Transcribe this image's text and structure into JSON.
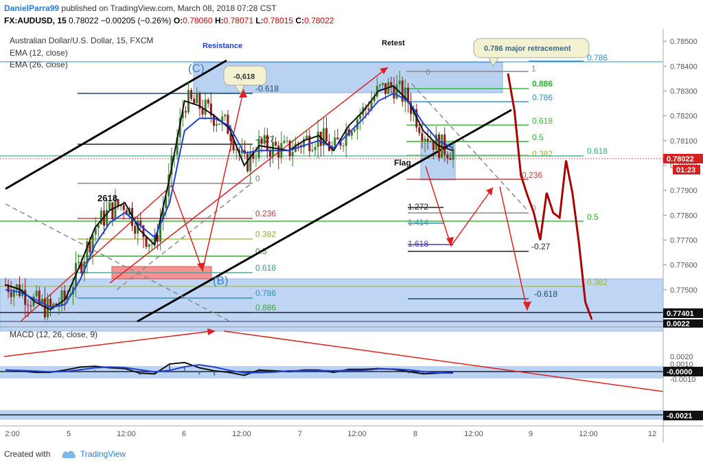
{
  "header": {
    "author": "DanielParra99",
    "published_text": "published on TradingView.com, March 08, 2018 07:28 CST",
    "symbol_line": "FX:AUDUSD, 15",
    "price": "0.78022",
    "change": "−0.00205 (−0.26%)",
    "open_label": "O:",
    "open": "0.78060",
    "high_label": "H:",
    "high": "0.78071",
    "low_label": "L:",
    "low": "0.78015",
    "close_label": "C:",
    "close": "0.78022"
  },
  "legend": {
    "title": "Australian Dollar/U.S. Dollar, 15, FXCM",
    "ema1": "EMA (12, close)",
    "ema2": "EMA (26, close)",
    "macd": "MACD (12, 26, close, 9)"
  },
  "colors": {
    "candle_up": "#3a7d2c",
    "candle_down": "#8b1a1a",
    "ema12": "#111111",
    "ema26": "#1f3fd6",
    "zone_blue": "#a9c8f0",
    "zone_red": "#f08080",
    "forecast": "#aa0000",
    "last_price_tag": "#d62020"
  },
  "chart_data": {
    "type": "line",
    "title": "Australian Dollar/U.S. Dollar, 15, FXCM",
    "y_price_range": [
      0.7735,
      0.7855
    ],
    "y_ticks": [
      "0.78500",
      "0.78400",
      "0.78300",
      "0.78200",
      "0.78100",
      "0.78000",
      "0.77900",
      "0.77800",
      "0.77700",
      "0.77600",
      "0.77500"
    ],
    "price_tags": {
      "last": "0.78022",
      "time": "01:23",
      "low_line": "0.77401",
      "zone_bottom": "0.0022"
    },
    "x_ticks": [
      "2:00",
      "5",
      "12:00",
      "6",
      "12:00",
      "7",
      "12:00",
      "8",
      "12:00",
      "9",
      "12:00",
      "12"
    ],
    "macd": {
      "y_ticks": [
        "0.0020",
        "0.0010",
        "-0.0010"
      ],
      "tags": [
        "-0.0000",
        "-0.0021"
      ]
    },
    "series": [
      {
        "name": "EMA (12, close)",
        "values": [
          0.7752,
          0.775,
          0.7745,
          0.7742,
          0.7746,
          0.776,
          0.7775,
          0.7782,
          0.7785,
          0.7774,
          0.7768,
          0.7795,
          0.7826,
          0.7824,
          0.782,
          0.7815,
          0.78,
          0.7808,
          0.7807,
          0.7806,
          0.781,
          0.7812,
          0.7806,
          0.7816,
          0.7822,
          0.783,
          0.7832,
          0.7826,
          0.7814,
          0.7808,
          0.7806
        ]
      },
      {
        "name": "EMA (26, close)",
        "values": [
          0.775,
          0.7749,
          0.7746,
          0.7743,
          0.7744,
          0.7754,
          0.7768,
          0.7777,
          0.7781,
          0.7776,
          0.7771,
          0.7785,
          0.7814,
          0.7819,
          0.7819,
          0.7816,
          0.7805,
          0.7806,
          0.7806,
          0.7806,
          0.7808,
          0.781,
          0.7807,
          0.7813,
          0.7819,
          0.7826,
          0.7829,
          0.7826,
          0.7817,
          0.781,
          0.7807
        ]
      }
    ],
    "forecast_path": [
      0.7837,
      0.7822,
      0.7796,
      0.7788,
      0.7781,
      0.777,
      0.7789,
      0.7781,
      0.7779,
      0.7802,
      0.7789,
      0.7769,
      0.7745,
      0.7738
    ],
    "annotations": {
      "resistance": "Resistance",
      "retest": "Retest",
      "c_label": "(C)",
      "b_label": "(B)",
      "flag": "Flag",
      "bubble1": "-0,618",
      "bubble2": "0.786 major retracement",
      "label_2618": "2618"
    },
    "fib_left": [
      "-0.618",
      "-0.27",
      "0",
      "0.236",
      "0.382",
      "0.5",
      "0.618",
      "0.786",
      "0.886"
    ],
    "fib_mid": [
      "0",
      "0.886",
      "0.786",
      "0.618",
      "0.5",
      "0.382",
      "0.236",
      "1"
    ],
    "fib_mid_top": "1",
    "fib_ext": [
      "1.272",
      "1.414",
      "1.618"
    ],
    "fib_right": [
      "0.786",
      "0.618",
      "0.5",
      "0.382",
      "0",
      "-0.27",
      "-0.618"
    ]
  },
  "footer": {
    "created": "Created with",
    "brand": "TradingView"
  }
}
